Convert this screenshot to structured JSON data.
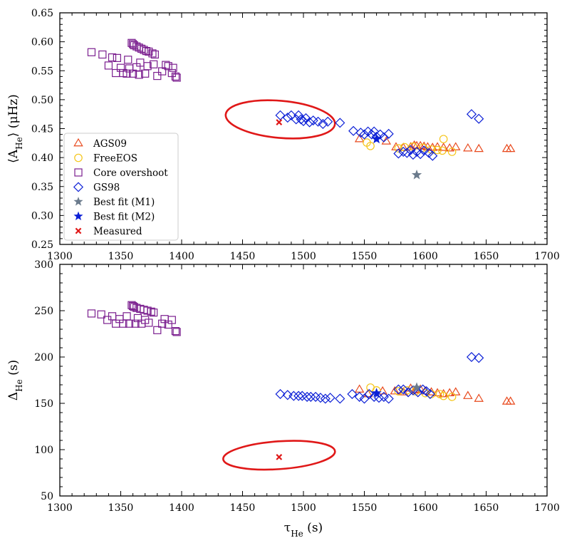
{
  "chart_data": [
    {
      "type": "scatter",
      "panel": "top",
      "ylabel": "⟨A_He⟩ (μHz)",
      "xlabel": "",
      "xlim": [
        1300,
        1700
      ],
      "ylim": [
        0.25,
        0.65
      ],
      "x_ticks": [
        "1300",
        "1350",
        "1400",
        "1450",
        "1500",
        "1550",
        "1600",
        "1650",
        "1700"
      ],
      "y_ticks": [
        "0.25",
        "0.30",
        "0.35",
        "0.40",
        "0.45",
        "0.50",
        "0.55",
        "0.60",
        "0.65"
      ],
      "legend_position": "lower-left",
      "legend": [
        {
          "label": "AGS09",
          "marker": "triangle",
          "color": "#e8491d"
        },
        {
          "label": "FreeEOS",
          "marker": "circle",
          "color": "#f5c518"
        },
        {
          "label": "Core overshoot",
          "marker": "square",
          "color": "#7b1f8f"
        },
        {
          "label": "GS98",
          "marker": "diamond",
          "color": "#0b1fd6"
        },
        {
          "label": "Best fit (M1)",
          "marker": "star",
          "color": "#6b7b8c"
        },
        {
          "label": "Best fit (M2)",
          "marker": "star",
          "color": "#0b1fd6"
        },
        {
          "label": "Measured",
          "marker": "x",
          "color": "#e01818"
        }
      ],
      "series": [
        {
          "name": "AGS09",
          "points": [
            [
              1546,
              0.432
            ],
            [
              1568,
              0.428
            ],
            [
              1576,
              0.418
            ],
            [
              1582,
              0.417
            ],
            [
              1588,
              0.418
            ],
            [
              1591,
              0.421
            ],
            [
              1593,
              0.42
            ],
            [
              1596,
              0.42
            ],
            [
              1599,
              0.419
            ],
            [
              1602,
              0.418
            ],
            [
              1606,
              0.417
            ],
            [
              1610,
              0.418
            ],
            [
              1615,
              0.417
            ],
            [
              1620,
              0.416
            ],
            [
              1625,
              0.418
            ],
            [
              1635,
              0.416
            ],
            [
              1644,
              0.415
            ],
            [
              1667,
              0.415
            ],
            [
              1670,
              0.415
            ]
          ]
        },
        {
          "name": "FreeEOS",
          "points": [
            [
              1552,
              0.426
            ],
            [
              1555,
              0.42
            ],
            [
              1578,
              0.416
            ],
            [
              1583,
              0.418
            ],
            [
              1590,
              0.419
            ],
            [
              1598,
              0.417
            ],
            [
              1605,
              0.414
            ],
            [
              1610,
              0.413
            ],
            [
              1614,
              0.412
            ],
            [
              1615,
              0.432
            ],
            [
              1622,
              0.41
            ]
          ]
        },
        {
          "name": "Core overshoot",
          "points": [
            [
              1326,
              0.582
            ],
            [
              1335,
              0.578
            ],
            [
              1340,
              0.559
            ],
            [
              1343,
              0.573
            ],
            [
              1346,
              0.546
            ],
            [
              1347,
              0.572
            ],
            [
              1350,
              0.555
            ],
            [
              1352,
              0.546
            ],
            [
              1355,
              0.545
            ],
            [
              1356,
              0.569
            ],
            [
              1357,
              0.554
            ],
            [
              1359,
              0.598
            ],
            [
              1360,
              0.596
            ],
            [
              1360,
              0.545
            ],
            [
              1361,
              0.594
            ],
            [
              1363,
              0.592
            ],
            [
              1363,
              0.556
            ],
            [
              1365,
              0.59
            ],
            [
              1365,
              0.543
            ],
            [
              1366,
              0.564
            ],
            [
              1367,
              0.588
            ],
            [
              1369,
              0.586
            ],
            [
              1370,
              0.545
            ],
            [
              1371,
              0.584
            ],
            [
              1372,
              0.558
            ],
            [
              1373,
              0.583
            ],
            [
              1376,
              0.58
            ],
            [
              1377,
              0.561
            ],
            [
              1378,
              0.578
            ],
            [
              1380,
              0.541
            ],
            [
              1384,
              0.549
            ],
            [
              1387,
              0.56
            ],
            [
              1389,
              0.558
            ],
            [
              1392,
              0.546
            ],
            [
              1393,
              0.555
            ],
            [
              1395,
              0.54
            ],
            [
              1396,
              0.538
            ]
          ]
        },
        {
          "name": "GS98",
          "points": [
            [
              1481,
              0.473
            ],
            [
              1487,
              0.469
            ],
            [
              1490,
              0.473
            ],
            [
              1494,
              0.466
            ],
            [
              1496,
              0.473
            ],
            [
              1498,
              0.466
            ],
            [
              1500,
              0.463
            ],
            [
              1502,
              0.468
            ],
            [
              1505,
              0.461
            ],
            [
              1508,
              0.464
            ],
            [
              1512,
              0.462
            ],
            [
              1516,
              0.458
            ],
            [
              1520,
              0.462
            ],
            [
              1530,
              0.46
            ],
            [
              1541,
              0.446
            ],
            [
              1547,
              0.443
            ],
            [
              1550,
              0.44
            ],
            [
              1553,
              0.445
            ],
            [
              1556,
              0.44
            ],
            [
              1558,
              0.445
            ],
            [
              1560,
              0.436
            ],
            [
              1563,
              0.44
            ],
            [
              1566,
              0.435
            ],
            [
              1570,
              0.441
            ],
            [
              1578,
              0.407
            ],
            [
              1582,
              0.41
            ],
            [
              1585,
              0.408
            ],
            [
              1588,
              0.413
            ],
            [
              1590,
              0.405
            ],
            [
              1593,
              0.41
            ],
            [
              1596,
              0.406
            ],
            [
              1599,
              0.412
            ],
            [
              1603,
              0.408
            ],
            [
              1606,
              0.403
            ],
            [
              1638,
              0.475
            ],
            [
              1644,
              0.467
            ]
          ]
        },
        {
          "name": "Best fit (M1)",
          "points": [
            [
              1593,
              0.37
            ]
          ]
        },
        {
          "name": "Best fit (M2)",
          "points": [
            [
              1560,
              0.432
            ]
          ]
        },
        {
          "name": "Measured",
          "points": [
            [
              1480,
              0.461
            ]
          ]
        }
      ],
      "ellipse": {
        "center": [
          1481,
          0.466
        ],
        "semi_x": 45,
        "semi_y": 0.032,
        "rotation_deg": 5,
        "color": "#e01818"
      }
    },
    {
      "type": "scatter",
      "panel": "bottom",
      "ylabel": "Δ_He (s)",
      "xlabel": "τ_He (s)",
      "xlim": [
        1300,
        1700
      ],
      "ylim": [
        50,
        300
      ],
      "x_ticks": [
        "1300",
        "1350",
        "1400",
        "1450",
        "1500",
        "1550",
        "1600",
        "1650",
        "1700"
      ],
      "y_ticks": [
        "50",
        "100",
        "150",
        "200",
        "250",
        "300"
      ],
      "series": [
        {
          "name": "AGS09",
          "points": [
            [
              1546,
              165
            ],
            [
              1553,
              160
            ],
            [
              1565,
              163
            ],
            [
              1575,
              163
            ],
            [
              1582,
              162
            ],
            [
              1588,
              166
            ],
            [
              1592,
              164
            ],
            [
              1596,
              165
            ],
            [
              1600,
              163
            ],
            [
              1605,
              162
            ],
            [
              1610,
              161
            ],
            [
              1615,
              160
            ],
            [
              1620,
              161
            ],
            [
              1625,
              162
            ],
            [
              1635,
              158
            ],
            [
              1644,
              155
            ],
            [
              1667,
              152
            ],
            [
              1670,
              152
            ]
          ]
        },
        {
          "name": "FreeEOS",
          "points": [
            [
              1555,
              167
            ],
            [
              1560,
              164
            ],
            [
              1578,
              163
            ],
            [
              1585,
              164
            ],
            [
              1592,
              163
            ],
            [
              1600,
              161
            ],
            [
              1605,
              160
            ],
            [
              1612,
              160
            ],
            [
              1615,
              158
            ],
            [
              1622,
              157
            ]
          ]
        },
        {
          "name": "Core overshoot",
          "points": [
            [
              1326,
              247
            ],
            [
              1334,
              246
            ],
            [
              1339,
              240
            ],
            [
              1343,
              244
            ],
            [
              1346,
              236
            ],
            [
              1349,
              241
            ],
            [
              1352,
              236
            ],
            [
              1355,
              244
            ],
            [
              1357,
              236
            ],
            [
              1359,
              256
            ],
            [
              1360,
              255
            ],
            [
              1361,
              254
            ],
            [
              1362,
              236
            ],
            [
              1363,
              253
            ],
            [
              1364,
              242
            ],
            [
              1366,
              252
            ],
            [
              1367,
              236
            ],
            [
              1369,
              251
            ],
            [
              1370,
              240
            ],
            [
              1372,
              250
            ],
            [
              1373,
              237
            ],
            [
              1375,
              249
            ],
            [
              1377,
              248
            ],
            [
              1380,
              229
            ],
            [
              1384,
              236
            ],
            [
              1386,
              241
            ],
            [
              1389,
              235
            ],
            [
              1392,
              240
            ],
            [
              1395,
              228
            ],
            [
              1396,
              227
            ]
          ]
        },
        {
          "name": "GS98",
          "points": [
            [
              1481,
              160
            ],
            [
              1487,
              159
            ],
            [
              1492,
              158
            ],
            [
              1496,
              158
            ],
            [
              1499,
              158
            ],
            [
              1503,
              157
            ],
            [
              1506,
              157
            ],
            [
              1510,
              157
            ],
            [
              1514,
              156
            ],
            [
              1518,
              155
            ],
            [
              1522,
              156
            ],
            [
              1530,
              155
            ],
            [
              1540,
              160
            ],
            [
              1546,
              157
            ],
            [
              1550,
              155
            ],
            [
              1554,
              160
            ],
            [
              1558,
              157
            ],
            [
              1562,
              156
            ],
            [
              1566,
              157
            ],
            [
              1570,
              155
            ],
            [
              1578,
              165
            ],
            [
              1582,
              165
            ],
            [
              1586,
              162
            ],
            [
              1590,
              164
            ],
            [
              1594,
              162
            ],
            [
              1598,
              165
            ],
            [
              1601,
              163
            ],
            [
              1604,
              160
            ],
            [
              1638,
              200
            ],
            [
              1644,
              199
            ]
          ]
        },
        {
          "name": "Best fit (M1)",
          "points": [
            [
              1593,
              167
            ]
          ]
        },
        {
          "name": "Best fit (M2)",
          "points": [
            [
              1560,
              161
            ]
          ]
        },
        {
          "name": "Measured",
          "points": [
            [
              1480,
              92
            ]
          ]
        }
      ],
      "ellipse": {
        "center": [
          1480,
          94
        ],
        "semi_x": 46,
        "semi_y": 15,
        "rotation_deg": -4,
        "color": "#e01818"
      }
    }
  ]
}
